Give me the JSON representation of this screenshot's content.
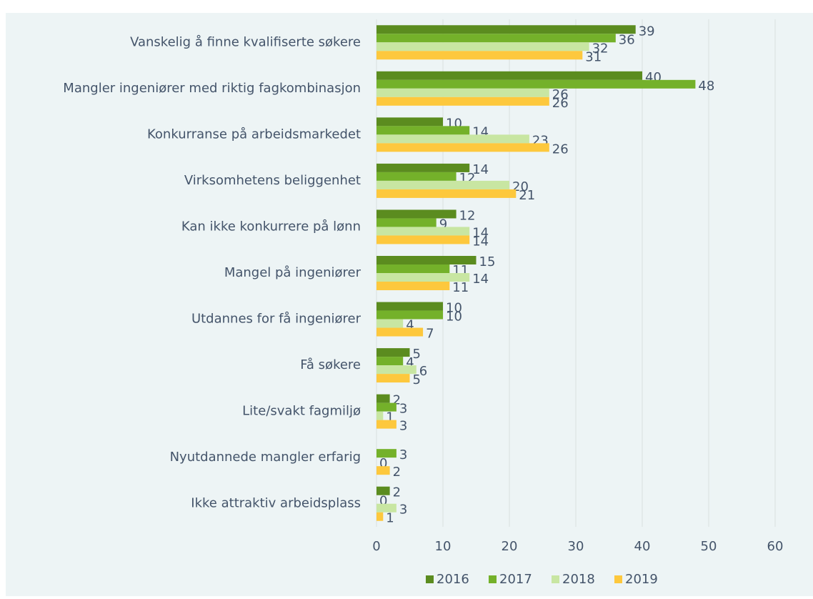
{
  "chart_data": {
    "type": "bar",
    "orientation": "horizontal",
    "categories": [
      "Vanskelig å finne kvalifiserte søkere",
      "Mangler ingeniører med riktig fagkombinasjon",
      "Konkurranse på arbeidsmarkedet",
      "Virksomhetens beliggenhet",
      "Kan ikke konkurrere på lønn",
      "Mangel på ingeniører",
      "Utdannes for få ingeniører",
      "Få søkere",
      "Lite/svakt fagmiljø",
      "Nyutdannede mangler erfarig",
      "Ikke attraktiv arbeidsplass"
    ],
    "series": [
      {
        "name": "2016",
        "color": "#5b8c1f",
        "values": [
          39,
          40,
          10,
          14,
          12,
          15,
          10,
          5,
          2,
          null,
          2
        ]
      },
      {
        "name": "2017",
        "color": "#74b12a",
        "values": [
          36,
          48,
          14,
          12,
          9,
          11,
          10,
          4,
          3,
          3,
          0
        ]
      },
      {
        "name": "2018",
        "color": "#c8e6a2",
        "values": [
          32,
          26,
          23,
          20,
          14,
          14,
          4,
          6,
          1,
          0,
          3
        ]
      },
      {
        "name": "2019",
        "color": "#fdc83d",
        "values": [
          31,
          26,
          26,
          21,
          14,
          11,
          7,
          5,
          3,
          2,
          1
        ]
      }
    ],
    "xlim": [
      0,
      60
    ],
    "xticks": [
      0,
      10,
      20,
      30,
      40,
      50,
      60
    ],
    "grid": true,
    "legend": "bottom"
  }
}
